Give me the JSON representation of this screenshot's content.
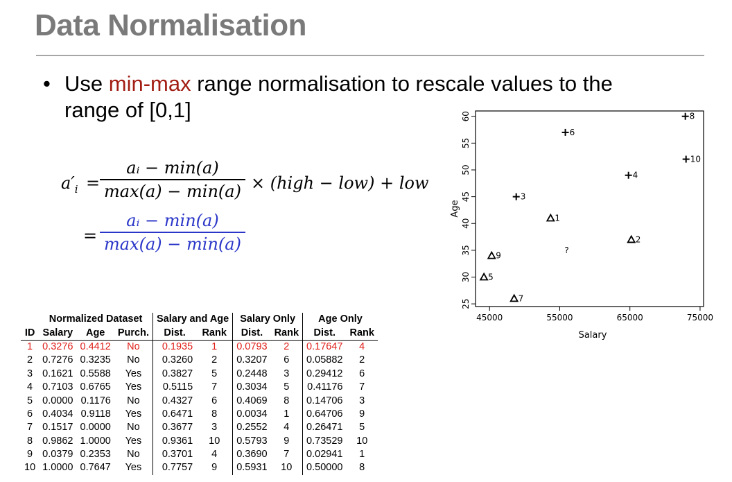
{
  "title": "Data Normalisation",
  "bullet": {
    "pre": "Use ",
    "highlight": "min-max",
    "post": " range normalisation to rescale values to the range of [0,1]"
  },
  "formula": {
    "lhs": "a′",
    "lhs_sub": "i",
    "eq": "=",
    "numerator": "aᵢ − min(a)",
    "denominator": "max(a) − min(a)",
    "tail": "× (high − low) + low",
    "eq2": "=",
    "numerator2": "aᵢ − min(a)",
    "denominator2": "max(a) − min(a)"
  },
  "table": {
    "group_headers": [
      "Normalized Dataset",
      "Salary and Age",
      "Salary Only",
      "Age Only"
    ],
    "col_headers": [
      "ID",
      "Salary",
      "Age",
      "Purch.",
      "Dist.",
      "Rank",
      "Dist.",
      "Rank",
      "Dist.",
      "Rank"
    ],
    "rows": [
      [
        "1",
        "0.3276",
        "0.4412",
        "No",
        "0.1935",
        "1",
        "0.0793",
        "2",
        "0.17647",
        "4"
      ],
      [
        "2",
        "0.7276",
        "0.3235",
        "No",
        "0.3260",
        "2",
        "0.3207",
        "6",
        "0.05882",
        "2"
      ],
      [
        "3",
        "0.1621",
        "0.5588",
        "Yes",
        "0.3827",
        "5",
        "0.2448",
        "3",
        "0.29412",
        "6"
      ],
      [
        "4",
        "0.7103",
        "0.6765",
        "Yes",
        "0.5115",
        "7",
        "0.3034",
        "5",
        "0.41176",
        "7"
      ],
      [
        "5",
        "0.0000",
        "0.1176",
        "No",
        "0.4327",
        "6",
        "0.4069",
        "8",
        "0.14706",
        "3"
      ],
      [
        "6",
        "0.4034",
        "0.9118",
        "Yes",
        "0.6471",
        "8",
        "0.0034",
        "1",
        "0.64706",
        "9"
      ],
      [
        "7",
        "0.1517",
        "0.0000",
        "No",
        "0.3677",
        "3",
        "0.2552",
        "4",
        "0.26471",
        "5"
      ],
      [
        "8",
        "0.9862",
        "1.0000",
        "Yes",
        "0.9361",
        "10",
        "0.5793",
        "9",
        "0.73529",
        "10"
      ],
      [
        "9",
        "0.0379",
        "0.2353",
        "No",
        "0.3701",
        "4",
        "0.3690",
        "7",
        "0.02941",
        "1"
      ],
      [
        "10",
        "1.0000",
        "0.7647",
        "Yes",
        "0.7757",
        "9",
        "0.5931",
        "10",
        "0.50000",
        "8"
      ]
    ],
    "highlight_row": 0
  },
  "chart_data": {
    "type": "scatter",
    "xlabel": "Salary",
    "ylabel": "Age",
    "xlim": [
      43000,
      75500
    ],
    "ylim": [
      24.5,
      61
    ],
    "xticks": [
      45000,
      55000,
      65000,
      75000
    ],
    "yticks": [
      25,
      30,
      35,
      40,
      45,
      50,
      55,
      60
    ],
    "points": [
      {
        "id": "1",
        "x": 53700,
        "y": 41,
        "marker": "triangle"
      },
      {
        "id": "2",
        "x": 65200,
        "y": 37,
        "marker": "triangle"
      },
      {
        "id": "3",
        "x": 48800,
        "y": 45,
        "marker": "plus"
      },
      {
        "id": "4",
        "x": 64800,
        "y": 49,
        "marker": "plus"
      },
      {
        "id": "5",
        "x": 44200,
        "y": 30,
        "marker": "triangle"
      },
      {
        "id": "6",
        "x": 55800,
        "y": 57,
        "marker": "plus"
      },
      {
        "id": "7",
        "x": 48500,
        "y": 26,
        "marker": "triangle"
      },
      {
        "id": "8",
        "x": 72900,
        "y": 60,
        "marker": "plus"
      },
      {
        "id": "9",
        "x": 45300,
        "y": 34,
        "marker": "triangle"
      },
      {
        "id": "10",
        "x": 73000,
        "y": 52,
        "marker": "plus"
      }
    ],
    "query": {
      "label": "?",
      "x": 56000,
      "y": 35
    }
  }
}
